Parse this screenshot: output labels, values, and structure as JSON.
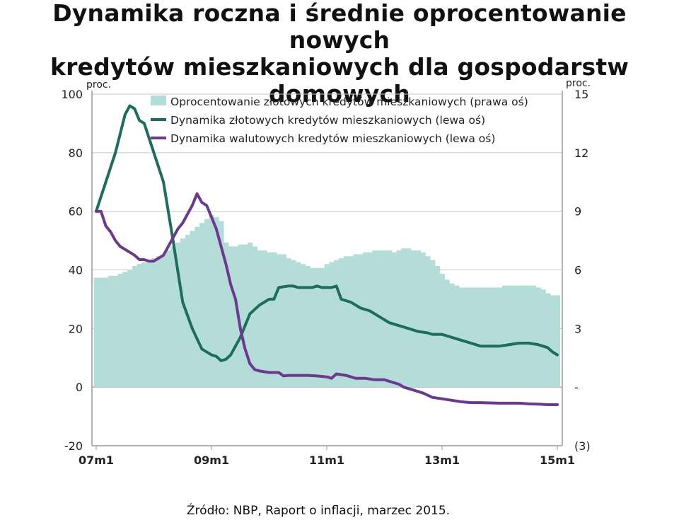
{
  "title": {
    "line1": "Dynamika roczna i średnie oprocentowanie nowych",
    "line2": "kredytów mieszkaniowych dla gospodarstw domowych"
  },
  "source": "Źródło: NBP, Raport o inflacji, marzec 2015.",
  "chart_data": {
    "type": "line",
    "left_axis_unit": "proc.",
    "right_axis_unit": "proc.",
    "left_ylim": [
      -20,
      100
    ],
    "right_ylim": [
      -3,
      15
    ],
    "left_ticks": [
      "100",
      "80",
      "60",
      "40",
      "20",
      "0",
      "-20"
    ],
    "right_ticks": [
      "15",
      "12",
      "9",
      "6",
      "3",
      "-",
      "(3)"
    ],
    "x_ticks": [
      "07m1",
      "09m1",
      "11m1",
      "13m1",
      "15m1"
    ],
    "x_tick_positions": [
      0,
      24,
      48,
      72,
      96
    ],
    "grid": "horizontal",
    "legend_position": "top",
    "colors": {
      "area": "#b4ddd9",
      "zloty": "#1c6d5d",
      "walutowe": "#6b3a8c",
      "grid": "#c8c8c8",
      "axis": "#9a9a9a"
    },
    "series": [
      {
        "name": "Oprocentowanie złotowych kredytów mieszkaniowych (prawa oś)",
        "kind": "area",
        "axis": "right",
        "values": [
          5.6,
          5.6,
          5.6,
          5.7,
          5.7,
          5.8,
          5.9,
          6.0,
          6.2,
          6.3,
          6.4,
          6.5,
          6.6,
          6.7,
          6.8,
          7.0,
          7.2,
          7.4,
          7.6,
          7.8,
          8.0,
          8.2,
          8.4,
          8.6,
          8.8,
          8.7,
          8.5,
          7.4,
          7.2,
          7.2,
          7.3,
          7.3,
          7.4,
          7.2,
          7.0,
          7.0,
          6.9,
          6.9,
          6.8,
          6.8,
          6.6,
          6.5,
          6.4,
          6.3,
          6.2,
          6.1,
          6.1,
          6.1,
          6.3,
          6.4,
          6.5,
          6.6,
          6.7,
          6.7,
          6.8,
          6.8,
          6.9,
          6.9,
          7.0,
          7.0,
          7.0,
          7.0,
          6.9,
          7.0,
          7.1,
          7.1,
          7.0,
          7.0,
          6.9,
          6.7,
          6.5,
          6.2,
          5.8,
          5.5,
          5.3,
          5.2,
          5.1,
          5.1,
          5.1,
          5.1,
          5.1,
          5.1,
          5.1,
          5.1,
          5.1,
          5.2,
          5.2,
          5.2,
          5.2,
          5.2,
          5.2,
          5.2,
          5.1,
          5.0,
          4.8,
          4.7,
          4.7
        ]
      },
      {
        "name": "Dynamika złotowych kredytów mieszkaniowych (lewa oś)",
        "kind": "line",
        "axis": "left",
        "points": [
          [
            0,
            60
          ],
          [
            2,
            70
          ],
          [
            4,
            80
          ],
          [
            6,
            93
          ],
          [
            7,
            96
          ],
          [
            8,
            95
          ],
          [
            9,
            91
          ],
          [
            10,
            90
          ],
          [
            12,
            80
          ],
          [
            14,
            70
          ],
          [
            16,
            50
          ],
          [
            18,
            29
          ],
          [
            20,
            20
          ],
          [
            22,
            13
          ],
          [
            24,
            11
          ],
          [
            25,
            10.5
          ],
          [
            26,
            9
          ],
          [
            27,
            9.5
          ],
          [
            28,
            11
          ],
          [
            30,
            17
          ],
          [
            32,
            25
          ],
          [
            34,
            28
          ],
          [
            36,
            30
          ],
          [
            37,
            30
          ],
          [
            38,
            34
          ],
          [
            40,
            34.5
          ],
          [
            41,
            34.5
          ],
          [
            42,
            34
          ],
          [
            43,
            34
          ],
          [
            44,
            34
          ],
          [
            45,
            34
          ],
          [
            46,
            34.5
          ],
          [
            47,
            34
          ],
          [
            48,
            34
          ],
          [
            49,
            34
          ],
          [
            50,
            34.5
          ],
          [
            51,
            30
          ],
          [
            53,
            29
          ],
          [
            55,
            27
          ],
          [
            57,
            26
          ],
          [
            59,
            24
          ],
          [
            61,
            22
          ],
          [
            63,
            21
          ],
          [
            65,
            20
          ],
          [
            67,
            19
          ],
          [
            69,
            18.5
          ],
          [
            70,
            18
          ],
          [
            71,
            18
          ],
          [
            72,
            18
          ],
          [
            74,
            17
          ],
          [
            76,
            16
          ],
          [
            78,
            15
          ],
          [
            80,
            14
          ],
          [
            82,
            14
          ],
          [
            84,
            14
          ],
          [
            86,
            14.5
          ],
          [
            88,
            15
          ],
          [
            90,
            15
          ],
          [
            92,
            14.5
          ],
          [
            94,
            13.5
          ],
          [
            95,
            12
          ],
          [
            96,
            11
          ]
        ]
      },
      {
        "name": "Dynamika walutowych kredytów mieszkaniowych (lewa oś)",
        "kind": "line",
        "axis": "left",
        "points": [
          [
            0,
            60
          ],
          [
            1,
            60
          ],
          [
            2,
            55
          ],
          [
            3,
            53
          ],
          [
            4,
            50
          ],
          [
            5,
            48
          ],
          [
            6,
            47
          ],
          [
            7,
            46
          ],
          [
            8,
            45
          ],
          [
            9,
            43.5
          ],
          [
            10,
            43.5
          ],
          [
            11,
            43
          ],
          [
            12,
            43
          ],
          [
            13,
            44
          ],
          [
            14,
            45
          ],
          [
            15,
            48
          ],
          [
            16,
            51
          ],
          [
            17,
            54
          ],
          [
            18,
            56
          ],
          [
            19,
            59
          ],
          [
            20,
            62
          ],
          [
            21,
            66
          ],
          [
            22,
            63
          ],
          [
            23,
            62
          ],
          [
            24,
            58
          ],
          [
            25,
            54
          ],
          [
            26,
            48
          ],
          [
            27,
            42
          ],
          [
            28,
            35
          ],
          [
            29,
            30
          ],
          [
            30,
            20
          ],
          [
            31,
            13
          ],
          [
            32,
            8
          ],
          [
            33,
            6
          ],
          [
            34,
            5.5
          ],
          [
            36,
            5
          ],
          [
            38,
            5
          ],
          [
            39,
            3.8
          ],
          [
            40,
            4
          ],
          [
            42,
            4
          ],
          [
            44,
            4
          ],
          [
            46,
            3.8
          ],
          [
            48,
            3.5
          ],
          [
            49,
            3
          ],
          [
            50,
            4.5
          ],
          [
            52,
            4
          ],
          [
            54,
            3
          ],
          [
            56,
            3
          ],
          [
            58,
            2.5
          ],
          [
            60,
            2.5
          ],
          [
            62,
            1.5
          ],
          [
            63,
            1
          ],
          [
            64,
            0
          ],
          [
            66,
            -1
          ],
          [
            68,
            -2
          ],
          [
            70,
            -3.5
          ],
          [
            72,
            -4
          ],
          [
            74,
            -4.5
          ],
          [
            76,
            -5
          ],
          [
            78,
            -5.3
          ],
          [
            80,
            -5.3
          ],
          [
            82,
            -5.4
          ],
          [
            84,
            -5.5
          ],
          [
            86,
            -5.5
          ],
          [
            88,
            -5.5
          ],
          [
            90,
            -5.7
          ],
          [
            92,
            -5.8
          ],
          [
            94,
            -6
          ],
          [
            96,
            -6
          ]
        ]
      }
    ]
  }
}
